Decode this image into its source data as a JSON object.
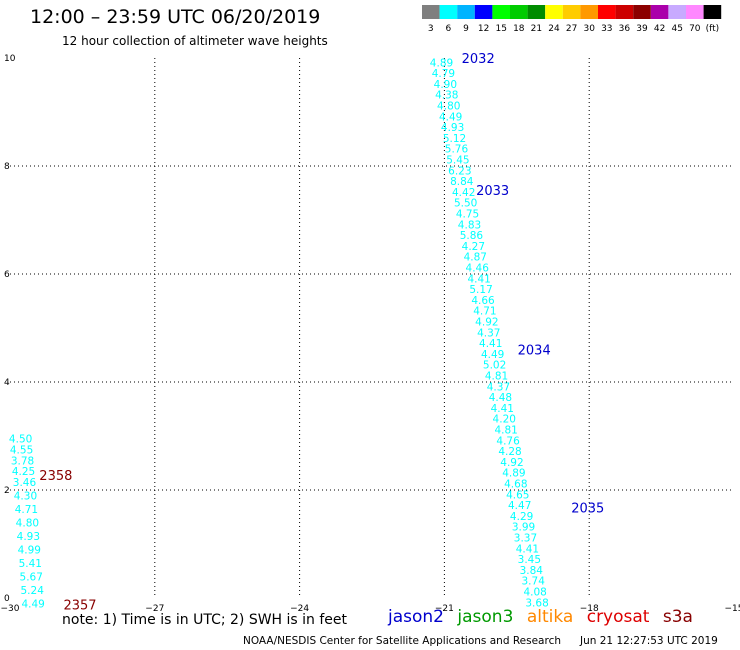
{
  "header": {
    "title": "12:00 – 23:59 UTC 06/20/2019",
    "subtitle": "12 hour collection of altimeter wave heights"
  },
  "colorbar": {
    "labels": [
      "3",
      "6",
      "9",
      "12",
      "15",
      "18",
      "21",
      "24",
      "27",
      "30",
      "33",
      "36",
      "39",
      "42",
      "45",
      "70",
      "(ft)"
    ],
    "colors": [
      "#7f7f7f",
      "#00ffff",
      "#00b4ff",
      "#0000ff",
      "#00ff00",
      "#00cc00",
      "#008c00",
      "#ffff00",
      "#ffcc00",
      "#ff9900",
      "#ff0000",
      "#cc0000",
      "#8c0000",
      "#aa00aa",
      "#c8aaff",
      "#ff88ff",
      "#000000"
    ]
  },
  "footer": {
    "note": "note: 1) Time is in UTC; 2) SWH is in feet",
    "credit": "NOAA/NESDIS Center for Satellite Applications and Research",
    "timestamp": "Jun 21 12:27:53 UTC 2019"
  },
  "satellites": [
    {
      "name": "jason2",
      "color": "#0000cc"
    },
    {
      "name": "jason3",
      "color": "#009900"
    },
    {
      "name": "altika",
      "color": "#ff8800"
    },
    {
      "name": "cryosat",
      "color": "#dd0000"
    },
    {
      "name": "s3a",
      "color": "#880000"
    }
  ],
  "chart_data": {
    "type": "scatter",
    "xlim": [
      -30,
      -15
    ],
    "ylim": [
      0,
      10
    ],
    "x_ticks": [
      -30,
      -27,
      -24,
      -21,
      -18,
      -15
    ],
    "x_tick_labels": [
      "−30",
      "−27",
      "−24",
      "−21",
      "−18",
      "−15"
    ],
    "y_ticks": [
      0,
      2,
      4,
      6,
      8,
      10
    ],
    "y_tick_labels": [
      "0",
      "2",
      "4",
      "6",
      "8",
      "10"
    ],
    "grid": true,
    "label_color": "#00ffff",
    "series": [
      {
        "name": "jason2",
        "color": "#0000cc",
        "points": [
          {
            "x": -21.06,
            "y": 9.92,
            "v": "4.89"
          },
          {
            "x": -21.02,
            "y": 9.72,
            "v": "4.79"
          },
          {
            "x": -20.98,
            "y": 9.52,
            "v": "4.90"
          },
          {
            "x": -20.95,
            "y": 9.32,
            "v": "4.38"
          },
          {
            "x": -20.91,
            "y": 9.12,
            "v": "4.80"
          },
          {
            "x": -20.87,
            "y": 8.92,
            "v": "4.49"
          },
          {
            "x": -20.83,
            "y": 8.72,
            "v": "4.93"
          },
          {
            "x": -20.79,
            "y": 8.52,
            "v": "5.12"
          },
          {
            "x": -20.75,
            "y": 8.32,
            "v": "5.76"
          },
          {
            "x": -20.72,
            "y": 8.12,
            "v": "5.45"
          },
          {
            "x": -20.68,
            "y": 7.92,
            "v": "6.23"
          },
          {
            "x": -20.64,
            "y": 7.72,
            "v": "8.84"
          },
          {
            "x": -20.6,
            "y": 7.52,
            "v": "4.42"
          },
          {
            "x": -20.56,
            "y": 7.32,
            "v": "5.50"
          },
          {
            "x": -20.52,
            "y": 7.12,
            "v": "4.75"
          },
          {
            "x": -20.48,
            "y": 6.92,
            "v": "4.83"
          },
          {
            "x": -20.44,
            "y": 6.72,
            "v": "5.86"
          },
          {
            "x": -20.4,
            "y": 6.52,
            "v": "4.27"
          },
          {
            "x": -20.36,
            "y": 6.32,
            "v": "4.87"
          },
          {
            "x": -20.32,
            "y": 6.12,
            "v": "4.46"
          },
          {
            "x": -20.28,
            "y": 5.92,
            "v": "4.41"
          },
          {
            "x": -20.24,
            "y": 5.72,
            "v": "5.17"
          },
          {
            "x": -20.2,
            "y": 5.52,
            "v": "4.66"
          },
          {
            "x": -20.16,
            "y": 5.32,
            "v": "4.71"
          },
          {
            "x": -20.12,
            "y": 5.12,
            "v": "4.92"
          },
          {
            "x": -20.08,
            "y": 4.92,
            "v": "4.37"
          },
          {
            "x": -20.04,
            "y": 4.72,
            "v": "4.41"
          },
          {
            "x": -20.0,
            "y": 4.52,
            "v": "4.49"
          },
          {
            "x": -19.96,
            "y": 4.32,
            "v": "5.02"
          },
          {
            "x": -19.92,
            "y": 4.12,
            "v": "4.81"
          },
          {
            "x": -19.88,
            "y": 3.92,
            "v": "4.37"
          },
          {
            "x": -19.84,
            "y": 3.72,
            "v": "4.48"
          },
          {
            "x": -19.8,
            "y": 3.52,
            "v": "4.41"
          },
          {
            "x": -19.76,
            "y": 3.32,
            "v": "4.20"
          },
          {
            "x": -19.72,
            "y": 3.12,
            "v": "4.81"
          },
          {
            "x": -19.68,
            "y": 2.92,
            "v": "4.76"
          },
          {
            "x": -19.64,
            "y": 2.72,
            "v": "4.28"
          },
          {
            "x": -19.6,
            "y": 2.52,
            "v": "4.92"
          },
          {
            "x": -19.56,
            "y": 2.32,
            "v": "4.89"
          },
          {
            "x": -19.52,
            "y": 2.12,
            "v": "4.68"
          },
          {
            "x": -19.48,
            "y": 1.92,
            "v": "4.65"
          },
          {
            "x": -19.44,
            "y": 1.72,
            "v": "4.47"
          },
          {
            "x": -19.4,
            "y": 1.52,
            "v": "4.29"
          },
          {
            "x": -19.36,
            "y": 1.32,
            "v": "3.99"
          },
          {
            "x": -19.32,
            "y": 1.12,
            "v": "3.37"
          },
          {
            "x": -19.28,
            "y": 0.92,
            "v": "4.41"
          },
          {
            "x": -19.24,
            "y": 0.72,
            "v": "3.45"
          },
          {
            "x": -19.2,
            "y": 0.52,
            "v": "3.84"
          },
          {
            "x": -19.16,
            "y": 0.32,
            "v": "3.74"
          },
          {
            "x": -19.12,
            "y": 0.12,
            "v": "4.08"
          },
          {
            "x": -19.08,
            "y": -0.08,
            "v": "3.68"
          }
        ],
        "time_labels": [
          {
            "x": -20.3,
            "y": 10.0,
            "text": "2032"
          },
          {
            "x": -20.0,
            "y": 7.56,
            "text": "2033"
          },
          {
            "x": -19.14,
            "y": 4.6,
            "text": "2034"
          },
          {
            "x": -18.03,
            "y": 1.68,
            "text": "2035"
          }
        ]
      },
      {
        "name": "s3a",
        "color": "#880000",
        "points": [
          {
            "x": -29.78,
            "y": 2.95,
            "v": "4.50"
          },
          {
            "x": -29.76,
            "y": 2.75,
            "v": "4.55"
          },
          {
            "x": -29.74,
            "y": 2.55,
            "v": "3.78"
          },
          {
            "x": -29.72,
            "y": 2.35,
            "v": "4.25"
          },
          {
            "x": -29.7,
            "y": 2.15,
            "v": "3.46"
          },
          {
            "x": -29.68,
            "y": 1.9,
            "v": "4.30"
          },
          {
            "x": -29.66,
            "y": 1.65,
            "v": "4.71"
          },
          {
            "x": -29.64,
            "y": 1.4,
            "v": "4.80"
          },
          {
            "x": -29.62,
            "y": 1.15,
            "v": "4.93"
          },
          {
            "x": -29.6,
            "y": 0.9,
            "v": "4.99"
          },
          {
            "x": -29.58,
            "y": 0.65,
            "v": "5.41"
          },
          {
            "x": -29.56,
            "y": 0.4,
            "v": "5.67"
          },
          {
            "x": -29.54,
            "y": 0.15,
            "v": "5.24"
          },
          {
            "x": -29.52,
            "y": -0.1,
            "v": "4.49"
          }
        ],
        "time_labels": [
          {
            "x": -29.05,
            "y": 2.28,
            "text": "2358"
          },
          {
            "x": -28.55,
            "y": -0.12,
            "text": "2357"
          }
        ]
      }
    ]
  }
}
